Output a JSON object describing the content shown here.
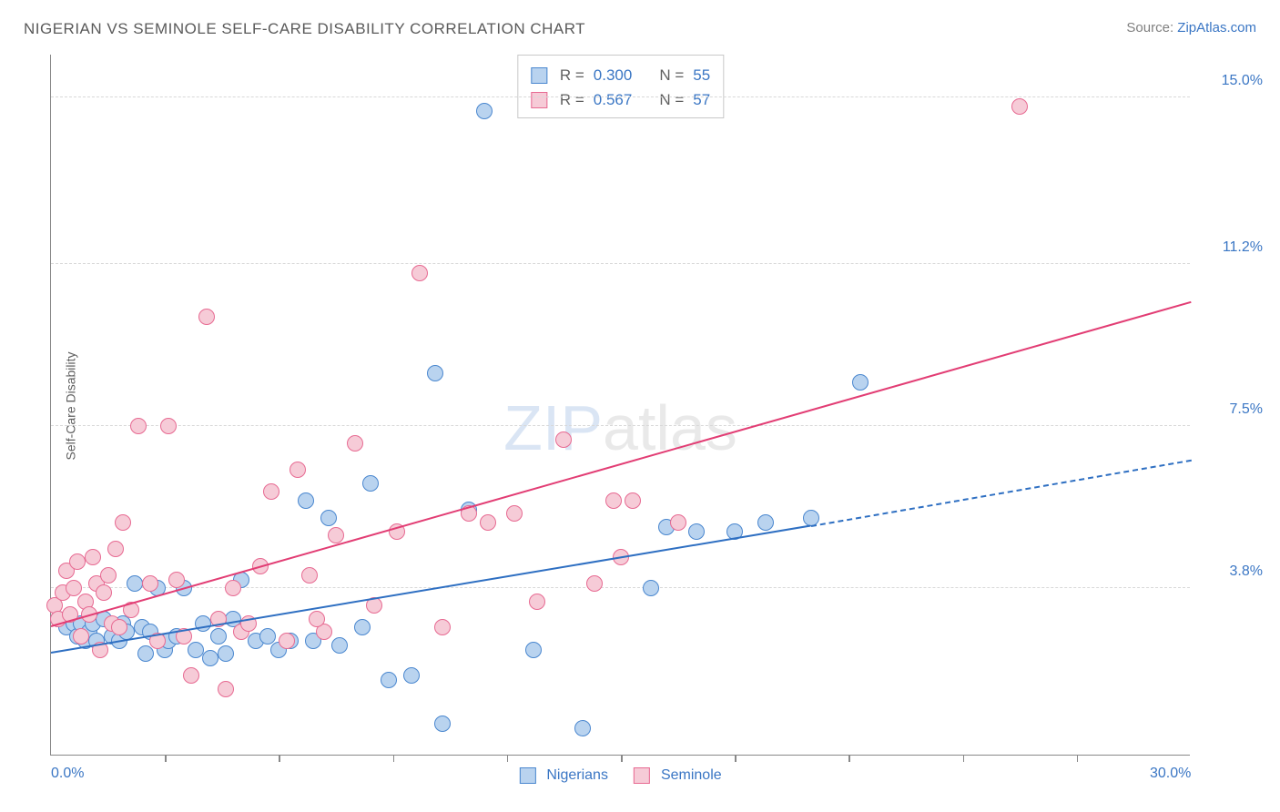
{
  "title": "NIGERIAN VS SEMINOLE SELF-CARE DISABILITY CORRELATION CHART",
  "source_label": "Source: ",
  "source_site": "ZipAtlas.com",
  "y_axis_label": "Self-Care Disability",
  "watermark_a": "ZIP",
  "watermark_b": "atlas",
  "chart": {
    "type": "scatter",
    "xlim": [
      0,
      30
    ],
    "ylim": [
      0,
      16
    ],
    "x_ticks_labeled": [
      {
        "v": 0.0,
        "label": "0.0%"
      },
      {
        "v": 30.0,
        "label": "30.0%"
      }
    ],
    "x_ticks_minor": [
      3,
      6,
      9,
      12,
      15,
      18,
      21,
      24,
      27
    ],
    "y_ticks": [
      {
        "v": 3.8,
        "label": "3.8%"
      },
      {
        "v": 7.5,
        "label": "7.5%"
      },
      {
        "v": 11.2,
        "label": "11.2%"
      },
      {
        "v": 15.0,
        "label": "15.0%"
      }
    ],
    "background_color": "#ffffff",
    "grid_color": "#d8d8d8",
    "marker_radius": 9,
    "marker_stroke_width": 1.5,
    "series": [
      {
        "name": "Nigerians",
        "fill": "#b9d3ef",
        "stroke": "#4a87cf",
        "R": "0.300",
        "N": "55",
        "trend": {
          "x1": 0,
          "y1": 2.3,
          "x2": 20,
          "y2": 5.2,
          "x3": 30,
          "y3": 6.7,
          "color": "#2e6fc2",
          "width": 2.5
        },
        "points": [
          [
            0.2,
            3.1
          ],
          [
            0.4,
            2.9
          ],
          [
            0.6,
            3.0
          ],
          [
            0.7,
            2.7
          ],
          [
            0.8,
            3.0
          ],
          [
            0.9,
            2.6
          ],
          [
            1.0,
            2.8
          ],
          [
            1.1,
            3.0
          ],
          [
            1.2,
            2.6
          ],
          [
            1.4,
            3.1
          ],
          [
            1.6,
            2.7
          ],
          [
            1.8,
            2.6
          ],
          [
            1.9,
            3.0
          ],
          [
            2.0,
            2.8
          ],
          [
            2.2,
            3.9
          ],
          [
            2.4,
            2.9
          ],
          [
            2.5,
            2.3
          ],
          [
            2.6,
            2.8
          ],
          [
            2.8,
            3.8
          ],
          [
            3.0,
            2.4
          ],
          [
            3.1,
            2.6
          ],
          [
            3.3,
            2.7
          ],
          [
            3.5,
            3.8
          ],
          [
            3.8,
            2.4
          ],
          [
            4.0,
            3.0
          ],
          [
            4.2,
            2.2
          ],
          [
            4.4,
            2.7
          ],
          [
            4.6,
            2.3
          ],
          [
            4.8,
            3.1
          ],
          [
            5.0,
            4.0
          ],
          [
            5.4,
            2.6
          ],
          [
            5.7,
            2.7
          ],
          [
            6.0,
            2.4
          ],
          [
            6.3,
            2.6
          ],
          [
            6.7,
            5.8
          ],
          [
            6.9,
            2.6
          ],
          [
            7.3,
            5.4
          ],
          [
            7.6,
            2.5
          ],
          [
            8.2,
            2.9
          ],
          [
            8.4,
            6.2
          ],
          [
            8.9,
            1.7
          ],
          [
            9.5,
            1.8
          ],
          [
            10.1,
            8.7
          ],
          [
            10.3,
            0.7
          ],
          [
            11.0,
            5.6
          ],
          [
            11.4,
            14.7
          ],
          [
            12.7,
            2.4
          ],
          [
            14.0,
            0.6
          ],
          [
            15.8,
            3.8
          ],
          [
            16.2,
            5.2
          ],
          [
            17.0,
            5.1
          ],
          [
            18.0,
            5.1
          ],
          [
            18.8,
            5.3
          ],
          [
            20.0,
            5.4
          ],
          [
            21.3,
            8.5
          ]
        ]
      },
      {
        "name": "Seminole",
        "fill": "#f6cbd7",
        "stroke": "#e76a92",
        "R": "0.567",
        "N": "57",
        "trend": {
          "x1": 0,
          "y1": 2.9,
          "x2": 30,
          "y2": 10.3,
          "color": "#e23d74",
          "width": 2.5
        },
        "points": [
          [
            0.1,
            3.4
          ],
          [
            0.2,
            3.1
          ],
          [
            0.3,
            3.7
          ],
          [
            0.4,
            4.2
          ],
          [
            0.5,
            3.2
          ],
          [
            0.6,
            3.8
          ],
          [
            0.7,
            4.4
          ],
          [
            0.8,
            2.7
          ],
          [
            0.9,
            3.5
          ],
          [
            1.0,
            3.2
          ],
          [
            1.1,
            4.5
          ],
          [
            1.2,
            3.9
          ],
          [
            1.3,
            2.4
          ],
          [
            1.4,
            3.7
          ],
          [
            1.5,
            4.1
          ],
          [
            1.6,
            3.0
          ],
          [
            1.7,
            4.7
          ],
          [
            1.8,
            2.9
          ],
          [
            1.9,
            5.3
          ],
          [
            2.1,
            3.3
          ],
          [
            2.3,
            7.5
          ],
          [
            2.6,
            3.9
          ],
          [
            2.8,
            2.6
          ],
          [
            3.1,
            7.5
          ],
          [
            3.3,
            4.0
          ],
          [
            3.5,
            2.7
          ],
          [
            3.7,
            1.8
          ],
          [
            4.1,
            10.0
          ],
          [
            4.4,
            3.1
          ],
          [
            4.6,
            1.5
          ],
          [
            4.8,
            3.8
          ],
          [
            5.0,
            2.8
          ],
          [
            5.2,
            3.0
          ],
          [
            5.5,
            4.3
          ],
          [
            5.8,
            6.0
          ],
          [
            6.2,
            2.6
          ],
          [
            6.5,
            6.5
          ],
          [
            6.8,
            4.1
          ],
          [
            7.2,
            2.8
          ],
          [
            7.5,
            5.0
          ],
          [
            8.0,
            7.1
          ],
          [
            8.5,
            3.4
          ],
          [
            9.1,
            5.1
          ],
          [
            9.7,
            11.0
          ],
          [
            10.3,
            2.9
          ],
          [
            11.0,
            5.5
          ],
          [
            11.5,
            5.3
          ],
          [
            12.2,
            5.5
          ],
          [
            12.8,
            3.5
          ],
          [
            13.5,
            7.2
          ],
          [
            14.3,
            3.9
          ],
          [
            14.8,
            5.8
          ],
          [
            15.0,
            4.5
          ],
          [
            15.3,
            5.8
          ],
          [
            16.5,
            5.3
          ],
          [
            25.5,
            14.8
          ],
          [
            7.0,
            3.1
          ]
        ]
      }
    ]
  },
  "legend_bottom": [
    {
      "name": "Nigerians",
      "fill": "#b9d3ef",
      "stroke": "#4a87cf"
    },
    {
      "name": "Seminole",
      "fill": "#f6cbd7",
      "stroke": "#e76a92"
    }
  ]
}
